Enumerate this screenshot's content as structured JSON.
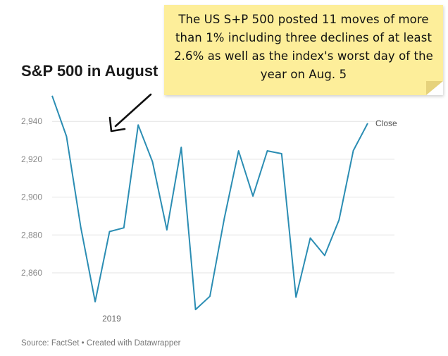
{
  "header": {
    "title": "S&P 500 in August"
  },
  "annotation": {
    "text": "The US S+P 500 posted 11 moves of more than 1% including three declines of at least 2.6% as well as the index's worst day of the year on Aug. 5"
  },
  "footer": {
    "source": "Source: FactSet • Created with Datawrapper"
  },
  "colors": {
    "line": "#2b8db3",
    "note": "#fdee9a",
    "grid": "#e3e3e3",
    "tick_label": "#888888"
  },
  "icons": [
    "arrow-icon"
  ],
  "chart_data": {
    "type": "line",
    "title": "S&P 500 in August",
    "xlabel": "",
    "ylabel": "",
    "ylim": [
      2840,
      2952
    ],
    "yticks": [
      2860,
      2880,
      2900,
      2920,
      2940
    ],
    "ytick_labels": [
      "2,860",
      "2,880",
      "2,900",
      "2,920",
      "2,940"
    ],
    "x_tick_label": "2019",
    "x_tick_index": 4,
    "grid": true,
    "series": [
      {
        "name": "Close",
        "values": [
          2953.56,
          2932.05,
          2883.98,
          2844.74,
          2881.77,
          2883.75,
          2938.09,
          2918.65,
          2882.7,
          2926.32,
          2840.6,
          2847.6,
          2888.68,
          2924.43,
          2900.51,
          2924.43,
          2922.95,
          2847.11,
          2878.38,
          2869.16,
          2887.94,
          2924.58,
          2939.0
        ]
      }
    ]
  }
}
